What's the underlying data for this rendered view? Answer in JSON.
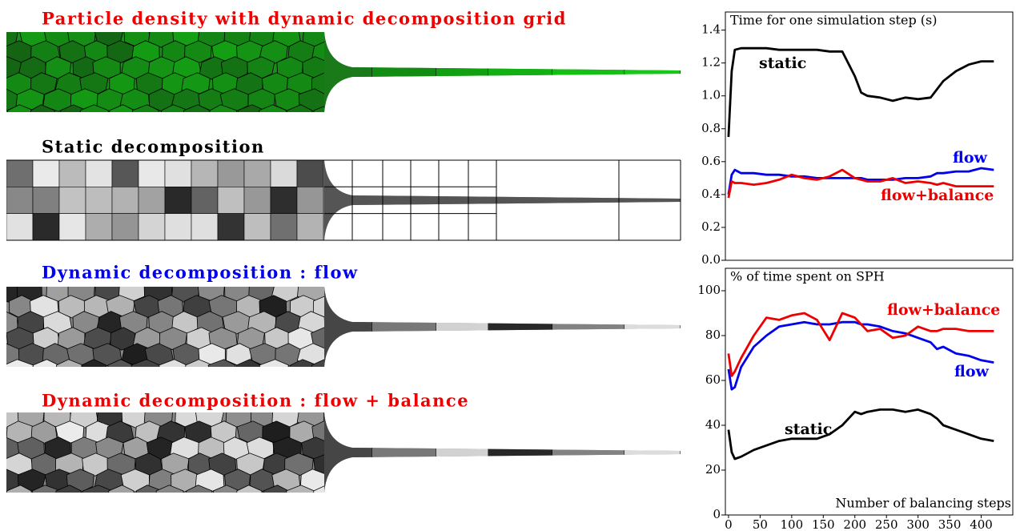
{
  "panels": [
    {
      "title": "Particle density with dynamic decomposition grid"
    },
    {
      "title": "Static decomposition"
    },
    {
      "title": "Dynamic decomposition :  flow"
    },
    {
      "title": "Dynamic decomposition :  flow + balance"
    }
  ],
  "chart_data": [
    {
      "type": "line",
      "title": "Time for one simulation step (s)",
      "x": [
        0,
        5,
        10,
        20,
        40,
        60,
        80,
        100,
        120,
        140,
        160,
        180,
        200,
        210,
        220,
        240,
        260,
        280,
        300,
        320,
        330,
        340,
        360,
        380,
        400,
        420
      ],
      "xlim": [
        -5,
        450
      ],
      "ylim": [
        0,
        1.51
      ],
      "yticks": [
        {
          "value": 0,
          "label": "0.0"
        },
        0.2,
        0.4,
        0.6,
        0.8,
        {
          "value": 1,
          "label": "1.0"
        },
        1.2,
        1.4
      ],
      "series": [
        {
          "name": "static",
          "color": "#000000",
          "values": [
            0.75,
            1.15,
            1.28,
            1.29,
            1.29,
            1.29,
            1.28,
            1.28,
            1.28,
            1.28,
            1.27,
            1.27,
            1.12,
            1.02,
            1.0,
            0.99,
            0.97,
            0.99,
            0.98,
            0.99,
            1.04,
            1.09,
            1.15,
            1.19,
            1.21,
            1.21
          ]
        },
        {
          "name": "flow",
          "color": "#0000ee",
          "values": [
            0.4,
            0.52,
            0.55,
            0.53,
            0.53,
            0.52,
            0.52,
            0.51,
            0.51,
            0.5,
            0.5,
            0.5,
            0.5,
            0.5,
            0.49,
            0.49,
            0.49,
            0.5,
            0.5,
            0.51,
            0.53,
            0.53,
            0.54,
            0.54,
            0.56,
            0.55
          ]
        },
        {
          "name": "flow+balance",
          "color": "#ee0000",
          "values": [
            0.38,
            0.48,
            0.47,
            0.47,
            0.46,
            0.47,
            0.49,
            0.52,
            0.5,
            0.49,
            0.51,
            0.55,
            0.5,
            0.49,
            0.48,
            0.48,
            0.5,
            0.47,
            0.48,
            0.47,
            0.46,
            0.47,
            0.45,
            0.45,
            0.45,
            0.45
          ]
        }
      ]
    },
    {
      "type": "line",
      "title": "% of time spent on SPH",
      "xlabel": "Number of balancing steps",
      "x": [
        0,
        5,
        10,
        20,
        40,
        60,
        80,
        100,
        120,
        140,
        160,
        180,
        200,
        210,
        220,
        240,
        260,
        280,
        300,
        320,
        330,
        340,
        360,
        380,
        400,
        420
      ],
      "xlim": [
        -5,
        450
      ],
      "ylim": [
        0,
        110
      ],
      "xticks": [
        0,
        50,
        100,
        150,
        200,
        250,
        300,
        350,
        400
      ],
      "yticks": [
        0,
        20,
        40,
        60,
        80,
        100
      ],
      "series": [
        {
          "name": "static",
          "color": "#000000",
          "values": [
            38,
            28,
            25,
            26,
            29,
            31,
            33,
            34,
            34,
            34,
            36,
            40,
            46,
            45,
            46,
            47,
            47,
            46,
            47,
            45,
            43,
            40,
            38,
            36,
            34,
            33
          ]
        },
        {
          "name": "flow",
          "color": "#0000ee",
          "values": [
            65,
            56,
            57,
            66,
            75,
            80,
            84,
            85,
            86,
            85,
            85,
            86,
            86,
            85,
            85,
            84,
            82,
            81,
            79,
            77,
            74,
            75,
            72,
            71,
            69,
            68
          ]
        },
        {
          "name": "flow+balance",
          "color": "#ee0000",
          "values": [
            72,
            62,
            64,
            70,
            80,
            88,
            87,
            89,
            90,
            87,
            78,
            90,
            88,
            85,
            82,
            83,
            79,
            80,
            84,
            82,
            82,
            83,
            83,
            82,
            82,
            82
          ]
        }
      ]
    }
  ]
}
